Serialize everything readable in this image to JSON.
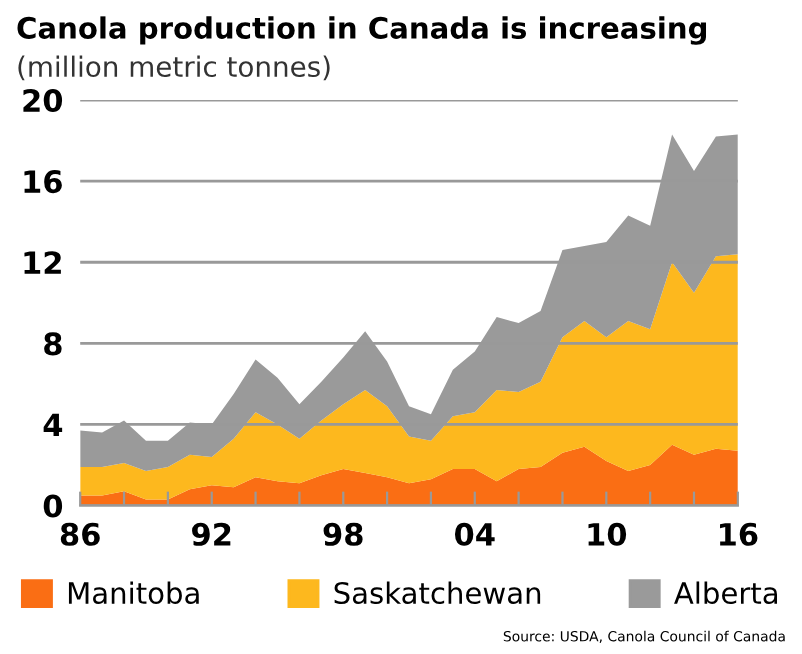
{
  "chart_data": {
    "type": "area",
    "stacked": true,
    "title": "Canola production in Canada is increasing",
    "subtitle": "(million metric tonnes)",
    "x": [
      1986,
      1987,
      1988,
      1989,
      1990,
      1991,
      1992,
      1993,
      1994,
      1995,
      1996,
      1997,
      1998,
      1999,
      2000,
      2001,
      2002,
      2003,
      2004,
      2005,
      2006,
      2007,
      2008,
      2009,
      2010,
      2011,
      2012,
      2013,
      2014,
      2015,
      2016
    ],
    "series": [
      {
        "name": "Manitoba",
        "color": "#fa6e14",
        "values": [
          0.5,
          0.5,
          0.7,
          0.3,
          0.3,
          0.8,
          1.0,
          0.9,
          1.4,
          1.2,
          1.1,
          1.5,
          1.8,
          1.6,
          1.4,
          1.1,
          1.3,
          1.8,
          1.8,
          1.2,
          1.8,
          1.9,
          2.6,
          2.9,
          2.2,
          1.7,
          2.0,
          3.0,
          2.5,
          2.8,
          2.7
        ]
      },
      {
        "name": "Saskatchewan",
        "color": "#fdb81e",
        "values": [
          1.4,
          1.4,
          1.4,
          1.4,
          1.6,
          1.7,
          1.4,
          2.4,
          3.2,
          2.8,
          2.2,
          2.7,
          3.2,
          4.1,
          3.5,
          2.3,
          1.9,
          2.6,
          2.8,
          4.5,
          3.8,
          4.2,
          5.7,
          6.2,
          6.1,
          7.4,
          6.7,
          9.0,
          8.0,
          9.5,
          9.7
        ]
      },
      {
        "name": "Alberta",
        "color": "#9a9a9a",
        "values": [
          1.8,
          1.7,
          2.1,
          1.5,
          1.3,
          1.6,
          1.6,
          2.2,
          2.6,
          2.3,
          1.7,
          1.9,
          2.3,
          2.9,
          2.2,
          1.5,
          1.3,
          2.3,
          3.0,
          3.6,
          3.4,
          3.5,
          4.3,
          3.7,
          4.7,
          5.2,
          5.1,
          6.3,
          6.0,
          5.9,
          5.9
        ]
      }
    ],
    "xlim": [
      1986,
      2016
    ],
    "xticks": [
      {
        "value": 1986,
        "label": "86"
      },
      {
        "value": 1988,
        "label": null
      },
      {
        "value": 1990,
        "label": null
      },
      {
        "value": 1992,
        "label": "92"
      },
      {
        "value": 1994,
        "label": null
      },
      {
        "value": 1996,
        "label": null
      },
      {
        "value": 1998,
        "label": "98"
      },
      {
        "value": 2000,
        "label": null
      },
      {
        "value": 2002,
        "label": null
      },
      {
        "value": 2004,
        "label": "04"
      },
      {
        "value": 2006,
        "label": null
      },
      {
        "value": 2008,
        "label": null
      },
      {
        "value": 2010,
        "label": "10"
      },
      {
        "value": 2012,
        "label": null
      },
      {
        "value": 2014,
        "label": null
      },
      {
        "value": 2016,
        "label": "16"
      }
    ],
    "ylim": [
      0,
      20
    ],
    "yticks": [
      0,
      4,
      8,
      12,
      16,
      20
    ],
    "grid": "y",
    "legend": "bottom",
    "annotations": [
      "Source: USDA, Canola Council of Canada"
    ]
  }
}
